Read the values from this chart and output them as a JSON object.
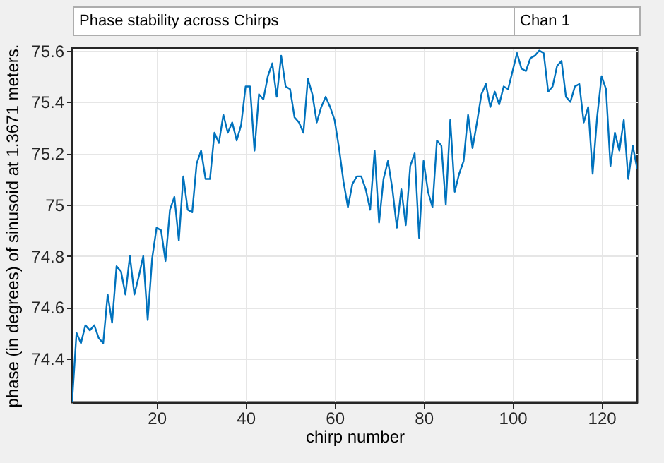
{
  "chart_data": {
    "type": "line",
    "annotations": [
      "Phase stability across Chirps",
      "Chan 1"
    ],
    "xlabel": "chirp number",
    "ylabel": "phase (in degrees) of sinusoid at 1.3671  meters.",
    "x": [
      1,
      2,
      3,
      4,
      5,
      6,
      7,
      8,
      9,
      10,
      11,
      12,
      13,
      14,
      15,
      16,
      17,
      18,
      19,
      20,
      21,
      22,
      23,
      24,
      25,
      26,
      27,
      28,
      29,
      30,
      31,
      32,
      33,
      34,
      35,
      36,
      37,
      38,
      39,
      40,
      41,
      42,
      43,
      44,
      45,
      46,
      47,
      48,
      49,
      50,
      51,
      52,
      53,
      54,
      55,
      56,
      57,
      58,
      59,
      60,
      61,
      62,
      63,
      64,
      65,
      66,
      67,
      68,
      69,
      70,
      71,
      72,
      73,
      74,
      75,
      76,
      77,
      78,
      79,
      80,
      81,
      82,
      83,
      84,
      85,
      86,
      87,
      88,
      89,
      90,
      91,
      92,
      93,
      94,
      95,
      96,
      97,
      98,
      99,
      100,
      101,
      102,
      103,
      104,
      105,
      106,
      107,
      108,
      109,
      110,
      111,
      112,
      113,
      114,
      115,
      116,
      117,
      118,
      119,
      120,
      121,
      122,
      123,
      124,
      125,
      126,
      127,
      128
    ],
    "series": [
      {
        "color": "#0072bd",
        "values": [
          74.23,
          74.5,
          74.46,
          74.53,
          74.51,
          74.53,
          74.48,
          74.46,
          74.65,
          74.54,
          74.76,
          74.74,
          74.65,
          74.8,
          74.65,
          74.72,
          74.8,
          74.55,
          74.79,
          74.91,
          74.9,
          74.78,
          74.98,
          75.03,
          74.86,
          75.11,
          74.98,
          74.97,
          75.16,
          75.21,
          75.1,
          75.1,
          75.28,
          75.24,
          75.35,
          75.28,
          75.32,
          75.25,
          75.31,
          75.46,
          75.46,
          75.21,
          75.43,
          75.41,
          75.5,
          75.55,
          75.42,
          75.58,
          75.46,
          75.45,
          75.34,
          75.32,
          75.28,
          75.49,
          75.43,
          75.32,
          75.38,
          75.42,
          75.38,
          75.33,
          75.22,
          75.09,
          74.99,
          75.08,
          75.11,
          75.11,
          75.06,
          74.98,
          75.21,
          74.93,
          75.1,
          75.17,
          75.06,
          74.91,
          75.06,
          74.92,
          75.15,
          75.2,
          74.87,
          75.17,
          75.05,
          74.99,
          75.25,
          75.23,
          75.0,
          75.33,
          75.05,
          75.12,
          75.17,
          75.35,
          75.22,
          75.32,
          75.43,
          75.47,
          75.38,
          75.44,
          75.39,
          75.46,
          75.45,
          75.52,
          75.59,
          75.53,
          75.52,
          75.57,
          75.58,
          75.6,
          75.59,
          75.44,
          75.46,
          75.54,
          75.56,
          75.42,
          75.4,
          75.46,
          75.47,
          75.32,
          75.38,
          75.12,
          75.34,
          75.5,
          75.45,
          75.15,
          75.28,
          75.21,
          75.33,
          75.1,
          75.23,
          75.14
        ]
      }
    ],
    "xlim": [
      1,
      128
    ],
    "xticks": [
      20,
      40,
      60,
      80,
      100,
      120
    ],
    "ylim": [
      74.23,
      75.61
    ],
    "yticks": [
      74.4,
      74.6,
      74.8,
      75,
      75.2,
      75.4,
      75.6
    ],
    "grid": true,
    "line_style": "solid",
    "marker": "none"
  }
}
